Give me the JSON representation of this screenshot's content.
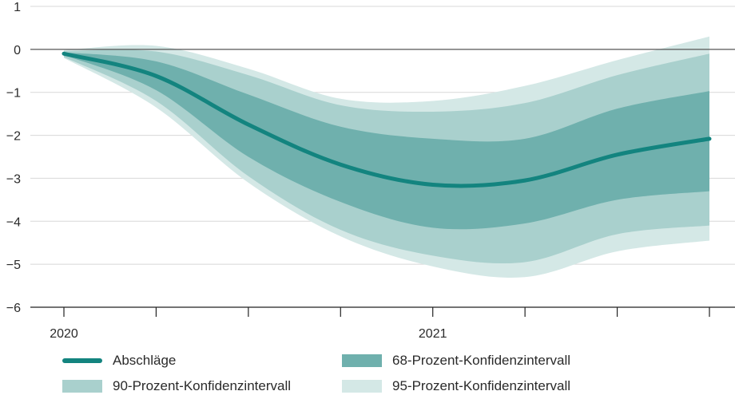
{
  "chart_data": {
    "type": "area",
    "x": [
      0,
      1,
      2,
      3,
      4,
      5,
      6,
      7
    ],
    "xlim": [
      0,
      7
    ],
    "ylim": [
      -6,
      1
    ],
    "yticks": [
      1,
      0,
      -1,
      -2,
      -3,
      -4,
      -5,
      -6
    ],
    "ytick_labels": [
      "1",
      "0",
      "−1",
      "−2",
      "−3",
      "−4",
      "−5",
      "−6"
    ],
    "xtick_positions": [
      0,
      1,
      2,
      3,
      4,
      5,
      6,
      7
    ],
    "xtick_labels": [
      {
        "pos": 0,
        "label": "2020"
      },
      {
        "pos": 4,
        "label": "2021"
      }
    ],
    "series": [
      {
        "name": "Abschläge",
        "kind": "line",
        "values": [
          -0.1,
          -0.62,
          -1.75,
          -2.68,
          -3.15,
          -3.05,
          -2.45,
          -2.08
        ]
      },
      {
        "name": "68-Prozent-Konfidenzintervall",
        "kind": "band",
        "lower": [
          -0.13,
          -0.95,
          -2.5,
          -3.55,
          -4.15,
          -4.05,
          -3.5,
          -3.3
        ],
        "upper": [
          -0.07,
          -0.28,
          -1.05,
          -1.8,
          -2.08,
          -2.08,
          -1.38,
          -0.97
        ]
      },
      {
        "name": "90-Prozent-Konfidenzintervall",
        "kind": "band",
        "lower": [
          -0.18,
          -1.2,
          -2.95,
          -4.2,
          -4.8,
          -4.95,
          -4.3,
          -4.1
        ],
        "upper": [
          -0.04,
          -0.05,
          -0.6,
          -1.3,
          -1.45,
          -1.25,
          -0.6,
          -0.1
        ]
      },
      {
        "name": "95-Prozent-Konfidenzintervall",
        "kind": "band",
        "lower": [
          -0.2,
          -1.35,
          -3.1,
          -4.35,
          -5.05,
          -5.3,
          -4.7,
          -4.45
        ],
        "upper": [
          -0.02,
          0.08,
          -0.45,
          -1.15,
          -1.2,
          -0.85,
          -0.25,
          0.3
        ]
      }
    ],
    "colors": {
      "line": "#13847f",
      "band68": "#6fb0ad",
      "band90": "#a9d0cd",
      "band95": "#d4e8e6",
      "grid": "#d8d8d8",
      "zero": "#555555",
      "axis": "#222222"
    },
    "grid": true,
    "legend_position": "bottom"
  },
  "legend": [
    {
      "label": "Abschläge",
      "kind": "line"
    },
    {
      "label": "68-Prozent-Konfidenzintervall",
      "kind": "band68"
    },
    {
      "label": "90-Prozent-Konfidenzintervall",
      "kind": "band90"
    },
    {
      "label": "95-Prozent-Konfidenzintervall",
      "kind": "band95"
    }
  ]
}
